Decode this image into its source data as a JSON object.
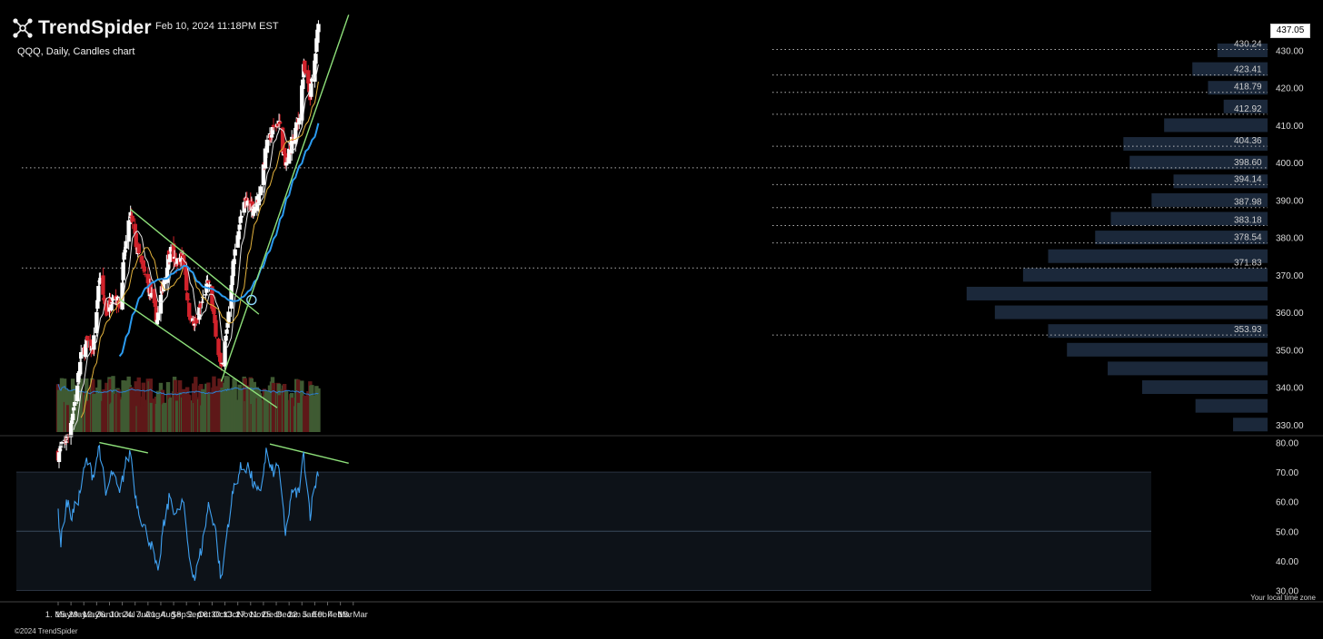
{
  "header": {
    "brand": "TrendSpider",
    "logo_icon": "trendspider-logo-icon",
    "timestamp": "Feb 10, 2024 11:18PM EST",
    "subtitle": "QQQ, Daily, Candles chart",
    "current_price": "437.05"
  },
  "footer": {
    "copyright": "©2024 TrendSpider",
    "timezone_note": "Your local time zone"
  },
  "colors": {
    "background": "#000000",
    "up_candle": "#ffffff",
    "down_candle": "#d0222b",
    "up_volume": "#3f5a32",
    "down_volume": "#5e1818",
    "sma_fast": "#e8e8e8",
    "sma_mid": "#e3b23c",
    "sma_slow": "#2b9bf0",
    "trendline": "#8ee07a",
    "rsi_line": "#3fa0f0",
    "volume_profile": "#1c2a3d",
    "level_line": "#cfcfcf"
  },
  "chart_data": {
    "type": "candlestick",
    "symbol": "QQQ",
    "interval": "Daily",
    "price_axis": {
      "min": 328,
      "max": 442,
      "ticks": [
        "430.00",
        "420.00",
        "410.00",
        "400.00",
        "390.00",
        "380.00",
        "370.00",
        "360.00",
        "350.00",
        "340.00",
        "330.00"
      ]
    },
    "rsi_axis": {
      "min": 28,
      "max": 82,
      "ticks": [
        "80.00",
        "70.00",
        "60.00",
        "50.00",
        "40.00",
        "30.00"
      ],
      "overbought": 70,
      "oversold": 30,
      "midline": 50
    },
    "x_ticks": [
      "1. May",
      "15. May",
      "29. May",
      "12. Jun",
      "26. Jun",
      "10. Jul",
      "24. Jul",
      "7. Aug",
      "21. Aug",
      "4. Sep",
      "18. Sep",
      "2. Oct",
      "16. Oct",
      "30. Oct",
      "13. Nov",
      "27. Nov",
      "11. Dec",
      "25. Dec",
      "8. Jan",
      "22. Jan",
      "5. Feb",
      "19. Feb",
      "4. Mar",
      "18. Mar"
    ],
    "levels": [
      {
        "label": "430.24",
        "value": 430.24
      },
      {
        "label": "423.41",
        "value": 423.41
      },
      {
        "label": "418.79",
        "value": 418.79
      },
      {
        "label": "412.92",
        "value": 412.92
      },
      {
        "label": "404.36",
        "value": 404.36
      },
      {
        "label": "398.60",
        "value": 398.6
      },
      {
        "label": "394.14",
        "value": 394.14
      },
      {
        "label": "387.98",
        "value": 387.98
      },
      {
        "label": "383.18",
        "value": 383.18
      },
      {
        "label": "378.54",
        "value": 378.54
      },
      {
        "label": "371.83",
        "value": 371.83
      },
      {
        "label": "353.93",
        "value": 353.93
      }
    ],
    "close_anchors": [
      [
        "2023-05-01",
        322
      ],
      [
        "2023-05-05",
        324
      ],
      [
        "2023-05-12",
        327
      ],
      [
        "2023-05-19",
        336
      ],
      [
        "2023-05-26",
        348
      ],
      [
        "2023-06-02",
        352
      ],
      [
        "2023-06-08",
        350
      ],
      [
        "2023-06-15",
        369
      ],
      [
        "2023-06-23",
        360
      ],
      [
        "2023-06-30",
        365
      ],
      [
        "2023-07-07",
        362
      ],
      [
        "2023-07-13",
        377
      ],
      [
        "2023-07-19",
        386
      ],
      [
        "2023-07-27",
        376
      ],
      [
        "2023-08-02",
        371
      ],
      [
        "2023-08-09",
        366
      ],
      [
        "2023-08-17",
        358
      ],
      [
        "2023-08-23",
        367
      ],
      [
        "2023-08-31",
        377
      ],
      [
        "2023-09-06",
        373
      ],
      [
        "2023-09-14",
        375
      ],
      [
        "2023-09-21",
        360
      ],
      [
        "2023-09-27",
        356
      ],
      [
        "2023-10-04",
        362
      ],
      [
        "2023-10-12",
        368
      ],
      [
        "2023-10-20",
        355
      ],
      [
        "2023-10-26",
        344
      ],
      [
        "2023-11-01",
        355
      ],
      [
        "2023-11-07",
        371
      ],
      [
        "2023-11-14",
        383
      ],
      [
        "2023-11-22",
        390
      ],
      [
        "2023-11-30",
        388
      ],
      [
        "2023-12-06",
        391
      ],
      [
        "2023-12-14",
        404
      ],
      [
        "2023-12-22",
        409
      ],
      [
        "2023-12-28",
        411
      ],
      [
        "2024-01-04",
        399
      ],
      [
        "2024-01-10",
        405
      ],
      [
        "2024-01-18",
        411
      ],
      [
        "2024-01-24",
        425
      ],
      [
        "2024-01-31",
        418
      ],
      [
        "2024-02-05",
        427
      ],
      [
        "2024-02-09",
        437.05
      ]
    ],
    "sma_periods": [
      10,
      20,
      50
    ],
    "rsi_anchors": [
      [
        "2023-05-01",
        57
      ],
      [
        "2023-05-04",
        46
      ],
      [
        "2023-05-10",
        60
      ],
      [
        "2023-05-16",
        55
      ],
      [
        "2023-05-24",
        62
      ],
      [
        "2023-06-01",
        74
      ],
      [
        "2023-06-08",
        69
      ],
      [
        "2023-06-15",
        79
      ],
      [
        "2023-06-22",
        62
      ],
      [
        "2023-06-29",
        70
      ],
      [
        "2023-07-07",
        62
      ],
      [
        "2023-07-13",
        72
      ],
      [
        "2023-07-19",
        77
      ],
      [
        "2023-07-25",
        61
      ],
      [
        "2023-08-02",
        52
      ],
      [
        "2023-08-10",
        46
      ],
      [
        "2023-08-18",
        35
      ],
      [
        "2023-08-23",
        50
      ],
      [
        "2023-08-31",
        62
      ],
      [
        "2023-09-07",
        55
      ],
      [
        "2023-09-14",
        60
      ],
      [
        "2023-09-21",
        42
      ],
      [
        "2023-09-27",
        34
      ],
      [
        "2023-10-05",
        45
      ],
      [
        "2023-10-12",
        59
      ],
      [
        "2023-10-19",
        52
      ],
      [
        "2023-10-26",
        33
      ],
      [
        "2023-11-02",
        52
      ],
      [
        "2023-11-09",
        65
      ],
      [
        "2023-11-16",
        71
      ],
      [
        "2023-11-24",
        72
      ],
      [
        "2023-12-01",
        65
      ],
      [
        "2023-12-07",
        62
      ],
      [
        "2023-12-14",
        77
      ],
      [
        "2023-12-20",
        70
      ],
      [
        "2023-12-28",
        72
      ],
      [
        "2024-01-04",
        48
      ],
      [
        "2024-01-10",
        62
      ],
      [
        "2024-01-18",
        63
      ],
      [
        "2024-01-24",
        76
      ],
      [
        "2024-01-31",
        56
      ],
      [
        "2024-02-05",
        65
      ],
      [
        "2024-02-09",
        71
      ]
    ],
    "trendlines": [
      {
        "name": "channel-top",
        "from": [
          "2023-07-19",
          387.5
        ],
        "to": [
          "2023-12-06",
          359.5
        ]
      },
      {
        "name": "channel-bottom",
        "from": [
          "2023-07-07",
          363.5
        ],
        "to": [
          "2023-12-26",
          334.5
        ]
      },
      {
        "name": "uptrend",
        "from": [
          "2023-10-26",
          341.5
        ],
        "to": [
          "2024-03-13",
          439.5
        ]
      },
      {
        "name": "rsi-divergence-1",
        "pane": "rsi",
        "from": [
          "2023-06-15",
          80
        ],
        "to": [
          "2023-08-07",
          76.5
        ]
      },
      {
        "name": "rsi-divergence-2",
        "pane": "rsi",
        "from": [
          "2023-12-18",
          79.5
        ],
        "to": [
          "2024-03-13",
          73
        ]
      }
    ],
    "volume_profile_levels": [
      {
        "price": 430,
        "fraction": 0.16
      },
      {
        "price": 425,
        "fraction": 0.24
      },
      {
        "price": 420,
        "fraction": 0.19
      },
      {
        "price": 415,
        "fraction": 0.14
      },
      {
        "price": 410,
        "fraction": 0.33
      },
      {
        "price": 405,
        "fraction": 0.46
      },
      {
        "price": 400,
        "fraction": 0.44
      },
      {
        "price": 395,
        "fraction": 0.3
      },
      {
        "price": 390,
        "fraction": 0.37
      },
      {
        "price": 385,
        "fraction": 0.5
      },
      {
        "price": 380,
        "fraction": 0.55
      },
      {
        "price": 375,
        "fraction": 0.7
      },
      {
        "price": 370,
        "fraction": 0.78
      },
      {
        "price": 365,
        "fraction": 0.96
      },
      {
        "price": 360,
        "fraction": 0.87
      },
      {
        "price": 355,
        "fraction": 0.7
      },
      {
        "price": 350,
        "fraction": 0.64
      },
      {
        "price": 345,
        "fraction": 0.51
      },
      {
        "price": 340,
        "fraction": 0.4
      },
      {
        "price": 335,
        "fraction": 0.23
      },
      {
        "price": 330,
        "fraction": 0.11
      }
    ]
  }
}
